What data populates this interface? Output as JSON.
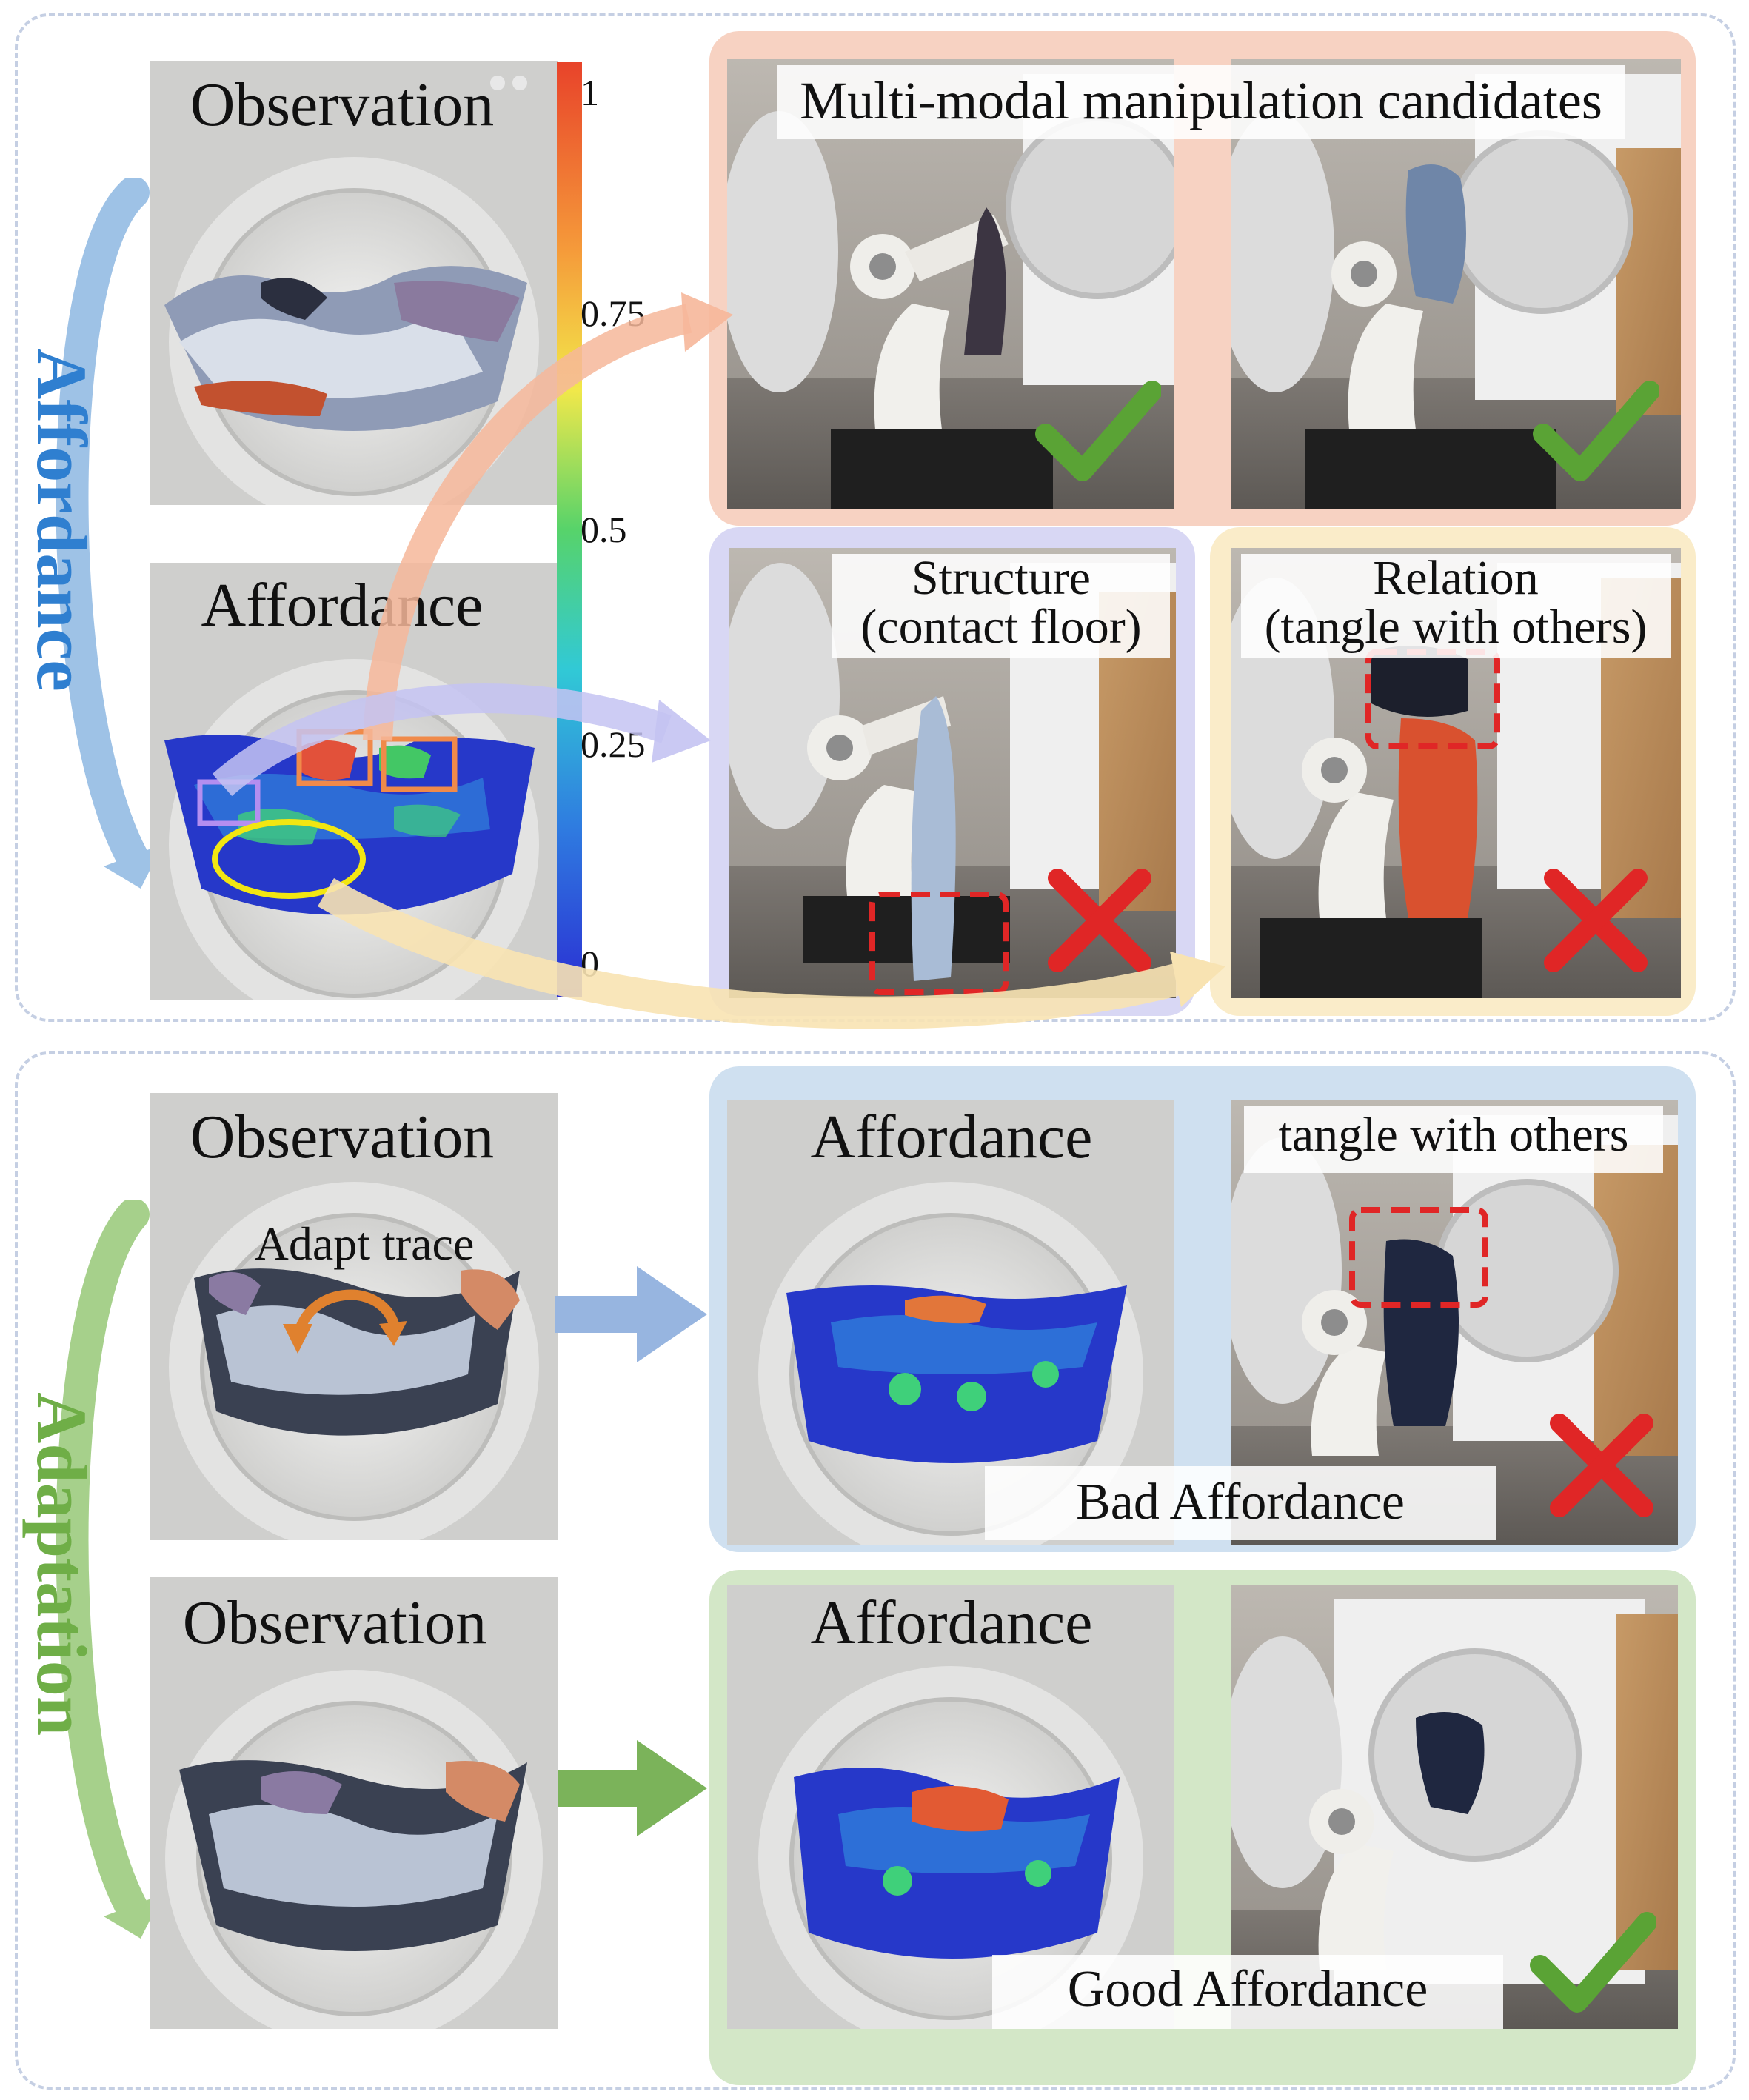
{
  "side_labels": {
    "top": "Affordance",
    "bottom": "Adaptation"
  },
  "top_left": {
    "observation_label": "Observation",
    "affordance_label": "Affordance"
  },
  "colorbar": {
    "ticks": [
      "1",
      "0.75",
      "0.5",
      "0.25",
      "0"
    ]
  },
  "candidates": {
    "title": "Multi-modal manipulation candidates"
  },
  "failures": {
    "structure": "Structure\n(contact floor)",
    "relation": "Relation\n(tangle with others)"
  },
  "bottom": {
    "obs1_label": "Observation",
    "adapt_trace": "Adapt trace",
    "aff1_label": "Affordance",
    "tangle": "tangle with others",
    "bad": "Bad Affordance",
    "obs2_label": "Observation",
    "aff2_label": "Affordance",
    "good": "Good Affordance"
  },
  "colors": {
    "orange_panel": "#f7d2c2",
    "purple_panel": "#d8d7f4",
    "yellow_panel": "#faecc9",
    "blue_panel": "#cfe0f0",
    "green_panel": "#d3e7c7",
    "check_green": "#5aa335",
    "cross_red": "#e02626",
    "affordance_blue": "#2f7fd0",
    "adaptation_green": "#83bd5f"
  }
}
